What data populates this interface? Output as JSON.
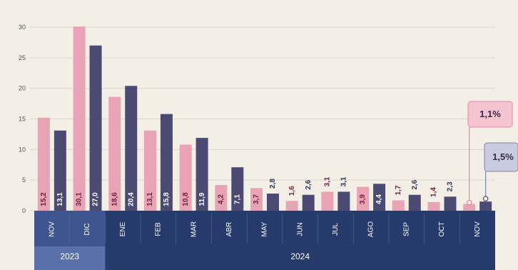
{
  "chart_data": {
    "type": "bar",
    "categories": [
      "NOV",
      "DIC",
      "ENE",
      "FEB",
      "MAR",
      "ABR",
      "MAY",
      "JUN",
      "JUL",
      "AGO",
      "SEP",
      "OCT",
      "NOV"
    ],
    "years": [
      {
        "label": "2023",
        "start": 0,
        "end": 1
      },
      {
        "label": "2024",
        "start": 2,
        "end": 12
      }
    ],
    "series": [
      {
        "color": "#e8a3b4",
        "values": [
          15.2,
          30.1,
          18.6,
          13.1,
          10.8,
          4.2,
          3.7,
          1.6,
          3.1,
          3.9,
          1.7,
          1.4,
          1.1
        ],
        "labels": [
          "15,2",
          "30,1",
          "18,6",
          "13,1",
          "10,8",
          "4,2",
          "3,7",
          "1,6",
          "3,1",
          "3,9",
          "1,7",
          "1,4",
          ""
        ]
      },
      {
        "color": "#4b4a72",
        "values": [
          13.1,
          27.0,
          20.4,
          15.8,
          11.9,
          7.1,
          2.8,
          2.6,
          3.1,
          4.4,
          2.6,
          2.3,
          1.5
        ],
        "labels": [
          "13,1",
          "27,0",
          "20,4",
          "15,8",
          "11,9",
          "7,1",
          "2,8",
          "2,6",
          "3,1",
          "4,4",
          "2,6",
          "2,3",
          ""
        ]
      }
    ],
    "callouts": [
      "1,1%",
      "1,5%"
    ],
    "yticks": [
      0,
      5,
      10,
      15,
      20,
      25,
      30
    ],
    "ylim": [
      0,
      30
    ],
    "grid": true
  }
}
